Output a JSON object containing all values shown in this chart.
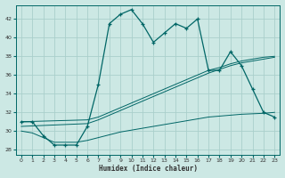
{
  "xlabel": "Humidex (Indice chaleur)",
  "bg_color": "#cce8e4",
  "grid_color": "#aacfcb",
  "line_color": "#006666",
  "xlim": [
    -0.5,
    23.5
  ],
  "ylim": [
    27.5,
    43.5
  ],
  "yticks": [
    28,
    30,
    32,
    34,
    36,
    38,
    40,
    42
  ],
  "xticks": [
    0,
    1,
    2,
    3,
    4,
    5,
    6,
    7,
    8,
    9,
    10,
    11,
    12,
    13,
    14,
    15,
    16,
    17,
    18,
    19,
    20,
    21,
    22,
    23
  ],
  "humidex_curve_x": [
    0,
    1,
    2,
    3,
    4,
    5,
    6,
    7,
    8,
    9,
    10,
    11,
    12,
    13,
    14,
    15,
    16,
    17,
    18,
    19,
    20,
    21,
    22,
    23
  ],
  "humidex_curve_y": [
    31,
    31,
    29.5,
    28.5,
    28.5,
    28.5,
    30.5,
    35,
    41.5,
    42.5,
    43,
    41.5,
    39.5,
    40.5,
    41.5,
    41,
    42,
    36.5,
    36.5,
    38.5,
    37,
    34.5,
    32,
    31.5
  ],
  "diag_upper1_x": [
    0,
    6,
    7,
    8,
    9,
    10,
    11,
    12,
    13,
    14,
    15,
    16,
    17,
    18,
    19,
    20,
    21,
    22,
    23
  ],
  "diag_upper1_y": [
    31.0,
    31.2,
    31.5,
    32.0,
    32.5,
    33.0,
    33.5,
    34.0,
    34.5,
    35.0,
    35.5,
    36.0,
    36.5,
    36.8,
    37.2,
    37.5,
    37.7,
    37.9,
    38.0
  ],
  "diag_upper2_x": [
    0,
    6,
    7,
    8,
    9,
    10,
    11,
    12,
    13,
    14,
    15,
    16,
    17,
    18,
    19,
    20,
    21,
    22,
    23
  ],
  "diag_upper2_y": [
    30.5,
    30.8,
    31.2,
    31.7,
    32.2,
    32.7,
    33.2,
    33.7,
    34.2,
    34.7,
    35.2,
    35.7,
    36.2,
    36.6,
    37.0,
    37.3,
    37.5,
    37.7,
    37.9
  ],
  "diag_lower_x": [
    0,
    1,
    2,
    3,
    4,
    5,
    6,
    7,
    8,
    9,
    10,
    11,
    12,
    13,
    14,
    15,
    16,
    17,
    18,
    19,
    20,
    21,
    22,
    23
  ],
  "diag_lower_y": [
    30.0,
    29.8,
    29.3,
    28.8,
    28.8,
    28.8,
    29.0,
    29.3,
    29.6,
    29.9,
    30.1,
    30.3,
    30.5,
    30.7,
    30.9,
    31.1,
    31.3,
    31.5,
    31.6,
    31.7,
    31.8,
    31.85,
    31.9,
    32.0
  ]
}
